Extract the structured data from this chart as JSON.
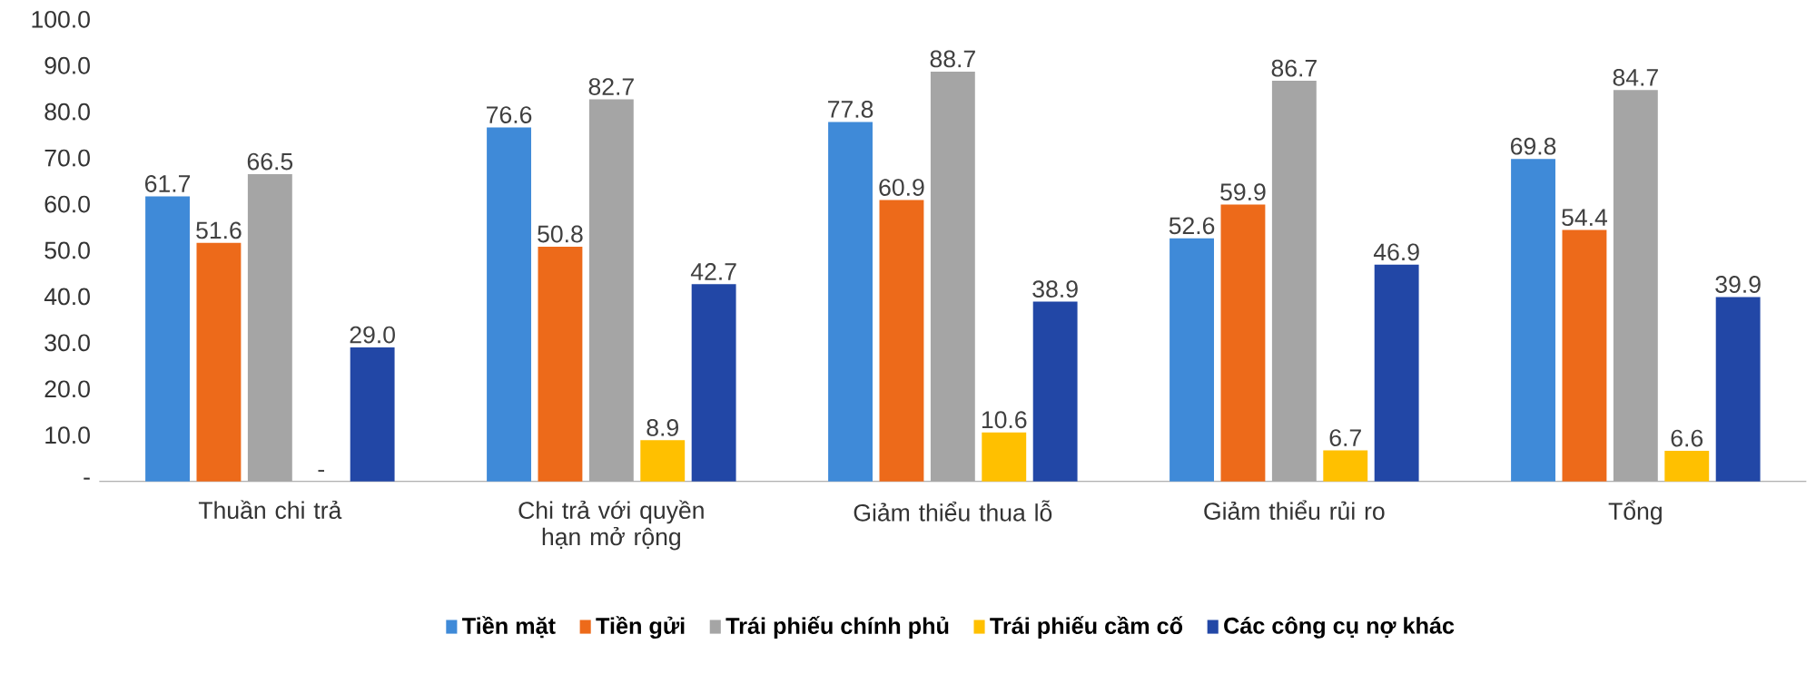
{
  "chart_data": {
    "type": "bar",
    "categories": [
      "Thuần chi trả",
      "Chi trả với quyền hạn mở rộng",
      "Giảm thiểu thua lỗ",
      "Giảm thiểu rủi ro",
      "Tổng"
    ],
    "series": [
      {
        "name": "Tiền mặt",
        "color": "#3f8ad8",
        "values": [
          61.7,
          76.6,
          77.8,
          52.6,
          69.8
        ],
        "value_labels": [
          "61.7",
          "76.6",
          "77.8",
          "52.6",
          "69.8"
        ]
      },
      {
        "name": "Tiền gửi",
        "color": "#ed6a1a",
        "values": [
          51.6,
          50.8,
          60.9,
          59.9,
          54.4
        ],
        "value_labels": [
          "51.6",
          "50.8",
          "60.9",
          "59.9",
          "54.4"
        ]
      },
      {
        "name": "Trái phiếu chính phủ",
        "color": "#a5a5a5",
        "values": [
          66.5,
          82.7,
          88.7,
          86.7,
          84.7
        ],
        "value_labels": [
          "66.5",
          "82.7",
          "88.7",
          "86.7",
          "84.7"
        ]
      },
      {
        "name": "Trái phiếu cầm cố",
        "color": "#ffc000",
        "values": [
          null,
          8.9,
          10.6,
          6.7,
          6.6
        ],
        "value_labels": [
          "-",
          "8.9",
          "10.6",
          "6.7",
          "6.6"
        ]
      },
      {
        "name": "Các công cụ nợ khác",
        "color": "#2247a6",
        "values": [
          29.0,
          42.7,
          38.9,
          46.9,
          39.9
        ],
        "value_labels": [
          "29.0",
          "42.7",
          "38.9",
          "46.9",
          "39.9"
        ]
      }
    ],
    "ylim": [
      0,
      100
    ],
    "yticks": [
      {
        "value": 0,
        "label": "-"
      },
      {
        "value": 10,
        "label": "10.0"
      },
      {
        "value": 20,
        "label": "20.0"
      },
      {
        "value": 30,
        "label": "30.0"
      },
      {
        "value": 40,
        "label": "40.0"
      },
      {
        "value": 50,
        "label": "50.0"
      },
      {
        "value": 60,
        "label": "60.0"
      },
      {
        "value": 70,
        "label": "70.0"
      },
      {
        "value": 80,
        "label": "80.0"
      },
      {
        "value": 90,
        "label": "90.0"
      },
      {
        "value": 100,
        "label": "100.0"
      }
    ],
    "legend": "bottom"
  }
}
